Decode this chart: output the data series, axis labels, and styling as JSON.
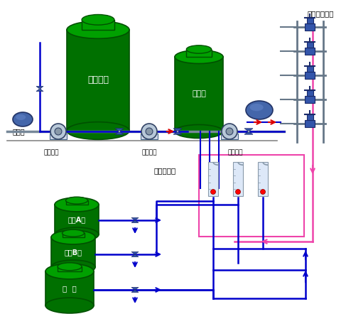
{
  "bg_color": "#ffffff",
  "tank_green_dark": "#005000",
  "tank_green_mid": "#007000",
  "tank_green_light": "#00a000",
  "pipe_blue": "#0000cc",
  "pipe_pink": "#ee44aa",
  "pipe_red": "#dd0000",
  "valve_blue_dark": "#1a2a6a",
  "valve_blue_mid": "#3355aa",
  "pump_gray": "#c0c8d8",
  "labels": {
    "wonsu_tank": "원수탱크",
    "jihasoo": "지하수",
    "gwanjeong_pump": "관정컴프",
    "wonsu_pump": "원수컴프",
    "honhap_tong": "혼합통",
    "gonggeup_pump": "공급컴프",
    "aekbi_honim": "액비혼입기",
    "aekbi_A": "액비A액",
    "aekbi_B": "액비B액",
    "san_aek": "산  액",
    "guyeok_valve": "구역전자밸브"
  }
}
